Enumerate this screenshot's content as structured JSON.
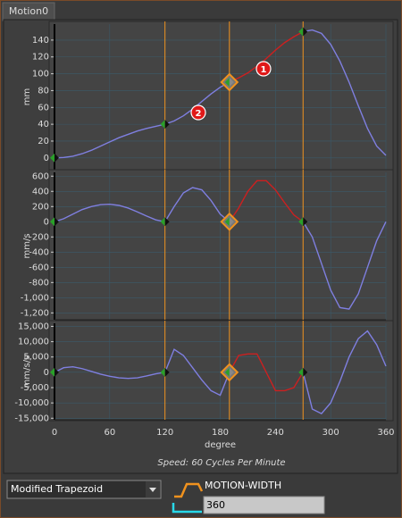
{
  "tab": "Motion0",
  "selected_segment": 2,
  "chart_data": [
    {
      "type": "line",
      "ylabel": "mm",
      "xlim": [
        0,
        360
      ],
      "xticks": [
        0,
        60,
        120,
        180,
        240,
        300,
        360
      ],
      "ylim": [
        -14,
        159
      ],
      "yticks": [
        0,
        20,
        40,
        60,
        80,
        100,
        120,
        140
      ],
      "grid": true,
      "annotations": [
        "1",
        "2"
      ],
      "series": [
        {
          "color": "#7f7fe0",
          "x": [
            0,
            10,
            20,
            30,
            40,
            50,
            60,
            70,
            80,
            90,
            100,
            110,
            120
          ],
          "values": [
            0,
            0.5,
            2,
            5,
            9,
            14,
            19,
            24,
            28,
            32,
            35,
            37.5,
            40
          ]
        },
        {
          "color": "#7f7fe0",
          "x": [
            120,
            130,
            140,
            150,
            160,
            170,
            180,
            190
          ],
          "values": [
            40,
            44,
            50,
            58,
            67,
            76,
            84,
            90
          ]
        },
        {
          "color": "#cc2020",
          "x": [
            190,
            200,
            210,
            220,
            230,
            240,
            250,
            260,
            270
          ],
          "values": [
            90,
            95,
            101,
            109,
            118,
            128,
            137,
            144,
            150
          ]
        },
        {
          "color": "#7f7fe0",
          "x": [
            270,
            280,
            290,
            300,
            310,
            320,
            330,
            340,
            350,
            360
          ],
          "values": [
            150,
            152,
            148,
            135,
            115,
            90,
            62,
            35,
            14,
            3
          ]
        }
      ]
    },
    {
      "type": "line",
      "ylabel": "mm/s",
      "xlim": [
        0,
        360
      ],
      "xticks": [
        0,
        60,
        120,
        180,
        240,
        300,
        360
      ],
      "ylim": [
        -1290,
        650
      ],
      "yticks": [
        600,
        400,
        200,
        0,
        -200,
        -400,
        -600,
        -800,
        {
          "value": -1000,
          "label": "-1,000"
        },
        {
          "value": -1200,
          "label": "-1,200"
        }
      ],
      "grid": true,
      "series": [
        {
          "color": "#7f7fe0",
          "x": [
            0,
            10,
            20,
            30,
            40,
            50,
            60,
            70,
            80,
            90,
            100,
            110,
            120
          ],
          "values": [
            0,
            40,
            100,
            160,
            200,
            225,
            230,
            215,
            180,
            130,
            75,
            25,
            0
          ]
        },
        {
          "color": "#7f7fe0",
          "x": [
            120,
            130,
            140,
            150,
            160,
            170,
            180,
            190
          ],
          "values": [
            0,
            200,
            380,
            450,
            420,
            280,
            100,
            0
          ]
        },
        {
          "color": "#cc2020",
          "x": [
            190,
            200,
            210,
            220,
            230,
            240,
            250,
            260,
            270
          ],
          "values": [
            0,
            180,
            400,
            540,
            540,
            420,
            250,
            90,
            0
          ]
        },
        {
          "color": "#7f7fe0",
          "x": [
            270,
            280,
            290,
            300,
            310,
            320,
            330,
            340,
            350,
            360
          ],
          "values": [
            0,
            -200,
            -550,
            -900,
            -1130,
            -1150,
            -950,
            -600,
            -250,
            0
          ]
        }
      ]
    },
    {
      "type": "line",
      "ylabel": "mm/s/s",
      "xlabel": "degree",
      "xlim": [
        0,
        360
      ],
      "xticks": [
        0,
        60,
        120,
        180,
        240,
        300,
        360
      ],
      "ylim": [
        -15500,
        16000
      ],
      "yticks": [
        {
          "value": 15000,
          "label": "15,000"
        },
        {
          "value": 10000,
          "label": "10,000"
        },
        {
          "value": 5000,
          "label": "5,000"
        },
        0,
        {
          "value": -5000,
          "label": "-5,000"
        },
        {
          "value": -10000,
          "label": "-10,000"
        },
        {
          "value": -15000,
          "label": "-15,000"
        }
      ],
      "grid": true,
      "series": [
        {
          "color": "#7f7fe0",
          "x": [
            0,
            10,
            20,
            30,
            40,
            50,
            60,
            70,
            80,
            90,
            100,
            110,
            120
          ],
          "values": [
            0,
            1500,
            1800,
            1200,
            300,
            -600,
            -1300,
            -1800,
            -2000,
            -1800,
            -1200,
            -500,
            0
          ]
        },
        {
          "color": "#7f7fe0",
          "x": [
            120,
            130,
            140,
            150,
            160,
            170,
            180,
            190
          ],
          "values": [
            0,
            7500,
            5500,
            1500,
            -2500,
            -6000,
            -7500,
            0
          ]
        },
        {
          "color": "#cc2020",
          "x": [
            190,
            200,
            210,
            220,
            230,
            240,
            250,
            260,
            270
          ],
          "values": [
            0,
            5500,
            6000,
            6000,
            0,
            -6000,
            -6000,
            -5000,
            0
          ]
        },
        {
          "color": "#7f7fe0",
          "x": [
            270,
            280,
            290,
            300,
            310,
            320,
            330,
            340,
            350,
            360
          ],
          "values": [
            0,
            -12000,
            -13500,
            -10000,
            -3000,
            5000,
            11000,
            13500,
            9000,
            2000
          ]
        }
      ]
    }
  ],
  "speed": "Speed: 60 Cycles Per Minute",
  "profile": "Modified Trapezoid",
  "motion_width_label": "MOTION-WIDTH",
  "motion_width": 360
}
